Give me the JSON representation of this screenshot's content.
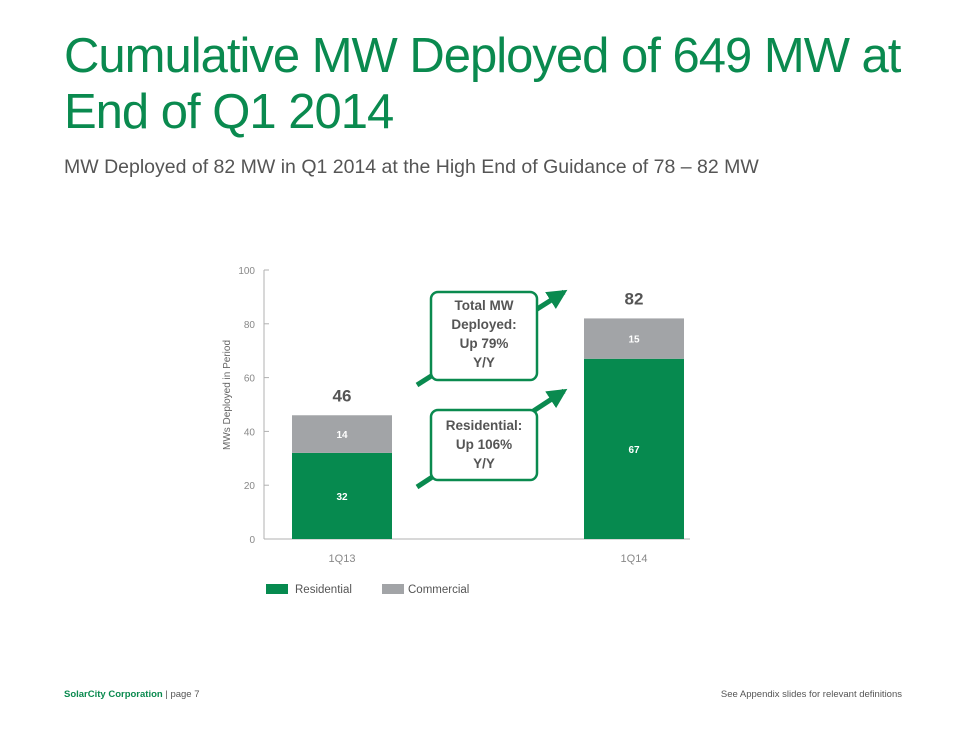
{
  "page": {
    "title": "Cumulative MW Deployed of 649 MW at End of Q1 2014",
    "subtitle": "MW Deployed of 82 MW in Q1 2014 at the High End of Guidance of 78 – 82 MW"
  },
  "colors": {
    "residential": "#068a4f",
    "commercial": "#a2a4a7",
    "accent": "#0a8a4f"
  },
  "chart_data": {
    "type": "bar",
    "stacked": true,
    "categories": [
      "1Q13",
      "1Q14"
    ],
    "series": [
      {
        "name": "Residential",
        "values": [
          32,
          67
        ],
        "labels": [
          "32",
          "67"
        ]
      },
      {
        "name": "Commercial",
        "values": [
          14,
          15
        ],
        "labels": [
          "14",
          "15"
        ]
      }
    ],
    "totals": [
      "46",
      "82"
    ],
    "ylabel": "MWs Deployed in Period",
    "ylim": [
      0,
      100
    ],
    "yticks": [
      0,
      20,
      40,
      60,
      80,
      100
    ],
    "legend_position": "bottom-left",
    "annotations": [
      {
        "lines": [
          "Total MW",
          "Deployed:",
          "Up 79%",
          "Y/Y"
        ]
      },
      {
        "lines": [
          "Residential:",
          "Up 106%",
          "Y/Y"
        ]
      }
    ]
  },
  "footer": {
    "company": "SolarCity Corporation",
    "page": " | page 7",
    "note": "See Appendix slides for relevant definitions"
  }
}
